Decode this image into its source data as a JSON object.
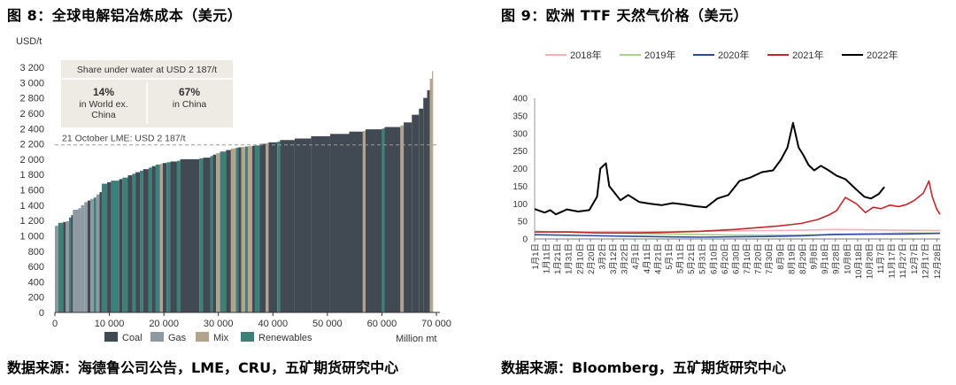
{
  "left": {
    "title": "图 8：全球电解铝冶炼成本（美元）",
    "source": "数据来源：海德鲁公司公告，LME，CRU，五矿期货研究中心"
  },
  "right": {
    "title": "图 9：欧洲 TTF 天然气价格（美元）",
    "source": "数据来源：Bloomberg，五矿期货研究中心"
  },
  "chart_data": [
    {
      "type": "bar",
      "subtype": "cost-curve",
      "ylabel": "USD/t",
      "xlabel": "Million mt",
      "ylim": [
        0,
        3200
      ],
      "xlim": [
        0,
        70000
      ],
      "yticks": [
        "0",
        "200",
        "400",
        "600",
        "800",
        "1 000",
        "1 200",
        "1 400",
        "1 600",
        "1 800",
        "2 000",
        "2 200",
        "2 400",
        "2 600",
        "2 800",
        "3 000",
        "3 200"
      ],
      "xticks": [
        "0",
        "10 000",
        "20 000",
        "30 000",
        "40 000",
        "50 000",
        "60 000",
        "70 000"
      ],
      "legend": [
        {
          "name": "Coal",
          "color": "#414a52"
        },
        {
          "name": "Gas",
          "color": "#8e99a1"
        },
        {
          "name": "Mix",
          "color": "#b4a48e"
        },
        {
          "name": "Renewables",
          "color": "#3f7f7a"
        }
      ],
      "reference_line": {
        "value": 2187,
        "label": "21 October LME: USD 2 187/t"
      },
      "infobox": {
        "title": "Share under water at USD 2 187/t",
        "left_value": "14%",
        "left_label_1": "in World ex.",
        "left_label_2": "China",
        "right_value": "67%",
        "right_label": "in China"
      },
      "segments": [
        {
          "x0": 0,
          "x1": 600,
          "y": 1130,
          "type": "Gas"
        },
        {
          "x0": 600,
          "x1": 1500,
          "y": 1170,
          "type": "Renewables"
        },
        {
          "x0": 1500,
          "x1": 2000,
          "y": 1180,
          "type": "Coal"
        },
        {
          "x0": 2000,
          "x1": 2600,
          "y": 1190,
          "type": "Gas"
        },
        {
          "x0": 2600,
          "x1": 3000,
          "y": 1240,
          "type": "Renewables"
        },
        {
          "x0": 3000,
          "x1": 3300,
          "y": 1270,
          "type": "Coal"
        },
        {
          "x0": 3300,
          "x1": 4300,
          "y": 1340,
          "type": "Gas"
        },
        {
          "x0": 4300,
          "x1": 4800,
          "y": 1360,
          "type": "Gas"
        },
        {
          "x0": 4800,
          "x1": 5400,
          "y": 1400,
          "type": "Gas"
        },
        {
          "x0": 5400,
          "x1": 6000,
          "y": 1440,
          "type": "Gas"
        },
        {
          "x0": 6000,
          "x1": 6500,
          "y": 1460,
          "type": "Coal"
        },
        {
          "x0": 6500,
          "x1": 7100,
          "y": 1480,
          "type": "Gas"
        },
        {
          "x0": 7100,
          "x1": 7600,
          "y": 1500,
          "type": "Renewables"
        },
        {
          "x0": 7600,
          "x1": 8200,
          "y": 1540,
          "type": "Gas"
        },
        {
          "x0": 8200,
          "x1": 8600,
          "y": 1570,
          "type": "Coal"
        },
        {
          "x0": 8600,
          "x1": 9600,
          "y": 1680,
          "type": "Renewables"
        },
        {
          "x0": 9600,
          "x1": 10300,
          "y": 1700,
          "type": "Coal"
        },
        {
          "x0": 10300,
          "x1": 11800,
          "y": 1720,
          "type": "Renewables"
        },
        {
          "x0": 11800,
          "x1": 12400,
          "y": 1740,
          "type": "Coal"
        },
        {
          "x0": 12400,
          "x1": 13400,
          "y": 1760,
          "type": "Renewables"
        },
        {
          "x0": 13400,
          "x1": 14200,
          "y": 1790,
          "type": "Coal"
        },
        {
          "x0": 14200,
          "x1": 14800,
          "y": 1810,
          "type": "Renewables"
        },
        {
          "x0": 14800,
          "x1": 15600,
          "y": 1830,
          "type": "Coal"
        },
        {
          "x0": 15600,
          "x1": 16200,
          "y": 1850,
          "type": "Renewables"
        },
        {
          "x0": 16200,
          "x1": 17200,
          "y": 1870,
          "type": "Coal"
        },
        {
          "x0": 17200,
          "x1": 17800,
          "y": 1890,
          "type": "Renewables"
        },
        {
          "x0": 17800,
          "x1": 18500,
          "y": 1910,
          "type": "Coal"
        },
        {
          "x0": 18500,
          "x1": 19300,
          "y": 1930,
          "type": "Renewables"
        },
        {
          "x0": 19300,
          "x1": 19800,
          "y": 1940,
          "type": "Mix"
        },
        {
          "x0": 19800,
          "x1": 20500,
          "y": 1950,
          "type": "Coal"
        },
        {
          "x0": 20500,
          "x1": 21200,
          "y": 1960,
          "type": "Renewables"
        },
        {
          "x0": 21200,
          "x1": 22400,
          "y": 1970,
          "type": "Coal"
        },
        {
          "x0": 22400,
          "x1": 23000,
          "y": 1980,
          "type": "Renewables"
        },
        {
          "x0": 23000,
          "x1": 26500,
          "y": 2000,
          "type": "Coal"
        },
        {
          "x0": 26500,
          "x1": 27200,
          "y": 2010,
          "type": "Renewables"
        },
        {
          "x0": 27200,
          "x1": 28500,
          "y": 2020,
          "type": "Coal"
        },
        {
          "x0": 28500,
          "x1": 29000,
          "y": 2040,
          "type": "Renewables"
        },
        {
          "x0": 29000,
          "x1": 29600,
          "y": 2060,
          "type": "Coal"
        },
        {
          "x0": 29600,
          "x1": 30300,
          "y": 2080,
          "type": "Mix"
        },
        {
          "x0": 30300,
          "x1": 31400,
          "y": 2100,
          "type": "Renewables"
        },
        {
          "x0": 31400,
          "x1": 32300,
          "y": 2120,
          "type": "Coal"
        },
        {
          "x0": 32300,
          "x1": 33200,
          "y": 2140,
          "type": "Mix"
        },
        {
          "x0": 33200,
          "x1": 33700,
          "y": 2150,
          "type": "Renewables"
        },
        {
          "x0": 33700,
          "x1": 34200,
          "y": 2155,
          "type": "Coal"
        },
        {
          "x0": 34200,
          "x1": 34900,
          "y": 2160,
          "type": "Mix"
        },
        {
          "x0": 34900,
          "x1": 35400,
          "y": 2165,
          "type": "Renewables"
        },
        {
          "x0": 35400,
          "x1": 36200,
          "y": 2170,
          "type": "Mix"
        },
        {
          "x0": 36200,
          "x1": 36700,
          "y": 2175,
          "type": "Coal"
        },
        {
          "x0": 36700,
          "x1": 37600,
          "y": 2180,
          "type": "Renewables"
        },
        {
          "x0": 37600,
          "x1": 38700,
          "y": 2200,
          "type": "Coal"
        },
        {
          "x0": 38700,
          "x1": 39200,
          "y": 2210,
          "type": "Mix"
        },
        {
          "x0": 39200,
          "x1": 40800,
          "y": 2220,
          "type": "Coal"
        },
        {
          "x0": 40800,
          "x1": 41300,
          "y": 2230,
          "type": "Renewables"
        },
        {
          "x0": 41300,
          "x1": 44000,
          "y": 2250,
          "type": "Coal"
        },
        {
          "x0": 44000,
          "x1": 47000,
          "y": 2270,
          "type": "Coal"
        },
        {
          "x0": 47000,
          "x1": 50500,
          "y": 2300,
          "type": "Coal"
        },
        {
          "x0": 50500,
          "x1": 54000,
          "y": 2330,
          "type": "Coal"
        },
        {
          "x0": 54000,
          "x1": 56500,
          "y": 2360,
          "type": "Coal"
        },
        {
          "x0": 56500,
          "x1": 57000,
          "y": 2370,
          "type": "Mix"
        },
        {
          "x0": 57000,
          "x1": 60000,
          "y": 2390,
          "type": "Coal"
        },
        {
          "x0": 60000,
          "x1": 60500,
          "y": 2400,
          "type": "Renewables"
        },
        {
          "x0": 60500,
          "x1": 63400,
          "y": 2420,
          "type": "Coal"
        },
        {
          "x0": 63400,
          "x1": 64000,
          "y": 2440,
          "type": "Mix"
        },
        {
          "x0": 64000,
          "x1": 65500,
          "y": 2480,
          "type": "Coal"
        },
        {
          "x0": 65500,
          "x1": 66800,
          "y": 2580,
          "type": "Coal"
        },
        {
          "x0": 66800,
          "x1": 67600,
          "y": 2660,
          "type": "Coal"
        },
        {
          "x0": 67600,
          "x1": 68300,
          "y": 2800,
          "type": "Coal"
        },
        {
          "x0": 68300,
          "x1": 68800,
          "y": 2900,
          "type": "Coal"
        },
        {
          "x0": 68800,
          "x1": 69200,
          "y": 3050,
          "type": "Mix"
        },
        {
          "x0": 69200,
          "x1": 69400,
          "y": 3150,
          "type": "Mix"
        }
      ]
    },
    {
      "type": "line",
      "ylim": [
        0,
        400
      ],
      "yticks": [
        "0",
        "50",
        "100",
        "150",
        "200",
        "250",
        "300",
        "350",
        "400"
      ],
      "xlim": [
        1,
        365
      ],
      "xtick_days": [
        1,
        11,
        21,
        31,
        41,
        51,
        61,
        71,
        81,
        91,
        101,
        111,
        121,
        131,
        141,
        151,
        161,
        171,
        181,
        191,
        201,
        211,
        221,
        231,
        241,
        251,
        261,
        271,
        281,
        291,
        301,
        311,
        321,
        331,
        341,
        351,
        362
      ],
      "xtick_labels": [
        "1月1日",
        "1月11日",
        "1月21日",
        "1月31日",
        "2月10日",
        "2月20日",
        "3月2日",
        "3月12日",
        "3月22日",
        "4月1日",
        "4月11日",
        "4月21日",
        "5月1日",
        "5月11日",
        "5月21日",
        "5月31日",
        "6月10日",
        "6月20日",
        "6月30日",
        "7月10日",
        "7月20日",
        "7月30日",
        "8月9日",
        "8月19日",
        "8月29日",
        "9月8日",
        "9月18日",
        "9月28日",
        "10月8日",
        "10月18日",
        "10月28日",
        "11月7日",
        "11月17日",
        "11月27日",
        "12月7日",
        "12月17日",
        "12月28日"
      ],
      "legend_position": "top",
      "series": [
        {
          "name": "2018年",
          "color": "#f4b0b8",
          "x": [
            1,
            60,
            120,
            180,
            240,
            270,
            300,
            330,
            365
          ],
          "y": [
            20,
            21,
            21,
            23,
            25,
            27,
            26,
            25,
            24
          ]
        },
        {
          "name": "2019年",
          "color": "#a8d48a",
          "x": [
            1,
            60,
            120,
            180,
            240,
            270,
            300,
            330,
            365
          ],
          "y": [
            22,
            17,
            14,
            11,
            11,
            12,
            13,
            17,
            16
          ]
        },
        {
          "name": "2020年",
          "color": "#3049a0",
          "x": [
            1,
            40,
            80,
            120,
            150,
            180,
            210,
            240,
            270,
            300,
            330,
            365
          ],
          "y": [
            12,
            10,
            8,
            6,
            5,
            6,
            7,
            9,
            13,
            14,
            14,
            16
          ]
        },
        {
          "name": "2021年",
          "color": "#c02a2c",
          "x": [
            1,
            30,
            60,
            90,
            120,
            150,
            180,
            200,
            220,
            240,
            255,
            265,
            272,
            280,
            290,
            298,
            305,
            312,
            320,
            328,
            335,
            342,
            350,
            355,
            358,
            362,
            365
          ],
          "y": [
            20,
            20,
            17,
            17,
            19,
            22,
            27,
            32,
            37,
            44,
            55,
            68,
            80,
            118,
            100,
            75,
            90,
            86,
            96,
            92,
            98,
            110,
            130,
            165,
            120,
            85,
            70
          ]
        },
        {
          "name": "2022年",
          "color": "#000000",
          "x": [
            1,
            10,
            15,
            20,
            30,
            40,
            50,
            57,
            60,
            65,
            68,
            73,
            78,
            85,
            95,
            105,
            115,
            125,
            135,
            145,
            155,
            165,
            175,
            185,
            195,
            205,
            215,
            222,
            228,
            233,
            238,
            242,
            247,
            252,
            258,
            265,
            272,
            280,
            290,
            297,
            303,
            310,
            315
          ],
          "y": [
            85,
            75,
            82,
            70,
            84,
            78,
            82,
            120,
            200,
            215,
            150,
            130,
            110,
            125,
            105,
            100,
            96,
            102,
            98,
            93,
            90,
            115,
            125,
            165,
            175,
            190,
            195,
            225,
            260,
            330,
            260,
            240,
            210,
            195,
            208,
            195,
            180,
            170,
            140,
            120,
            115,
            128,
            148
          ]
        }
      ]
    }
  ]
}
